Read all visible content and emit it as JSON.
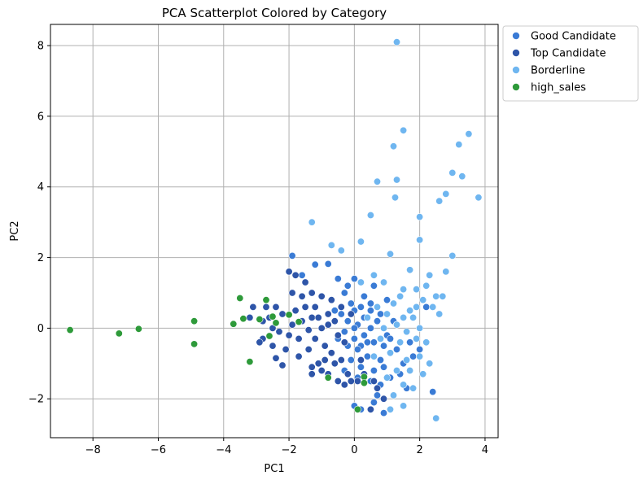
{
  "chart_data": {
    "type": "scatter",
    "title": "PCA Scatterplot Colored by Category",
    "xlabel": "PC1",
    "ylabel": "PC2",
    "xlim": [
      -9.3,
      4.4
    ],
    "ylim": [
      -3.1,
      8.6
    ],
    "xticks": [
      -8,
      -6,
      -4,
      -2,
      0,
      2,
      4
    ],
    "yticks": [
      -2,
      0,
      2,
      4,
      6,
      8
    ],
    "grid": true,
    "legend_position": "outside upper right",
    "series": [
      {
        "name": "Good Candidate",
        "color": "#3a7bd5",
        "points": [
          [
            -1.9,
            2.05
          ],
          [
            -1.6,
            1.5
          ],
          [
            -1.2,
            1.8
          ],
          [
            -0.8,
            1.82
          ],
          [
            -0.5,
            1.4
          ],
          [
            -0.2,
            1.2
          ],
          [
            0.0,
            1.4
          ],
          [
            -0.3,
            1.0
          ],
          [
            -0.1,
            0.7
          ],
          [
            0.0,
            0.5
          ],
          [
            -0.2,
            0.2
          ],
          [
            0.1,
            0.1
          ],
          [
            -0.3,
            -0.1
          ],
          [
            0.0,
            -0.3
          ],
          [
            0.2,
            -0.5
          ],
          [
            0.3,
            -0.2
          ],
          [
            0.5,
            0.0
          ],
          [
            0.6,
            -0.4
          ],
          [
            0.4,
            -0.8
          ],
          [
            0.2,
            -1.1
          ],
          [
            0.6,
            -1.2
          ],
          [
            0.8,
            -0.9
          ],
          [
            0.9,
            -0.5
          ],
          [
            1.0,
            -0.2
          ],
          [
            1.2,
            0.2
          ],
          [
            0.8,
            0.4
          ],
          [
            0.5,
            0.7
          ],
          [
            0.3,
            0.9
          ],
          [
            0.6,
            1.2
          ],
          [
            1.0,
            0.8
          ],
          [
            1.3,
            -0.6
          ],
          [
            1.5,
            -1.0
          ],
          [
            1.1,
            -1.4
          ],
          [
            0.8,
            -1.6
          ],
          [
            0.7,
            -1.9
          ],
          [
            0.6,
            -2.1
          ],
          [
            0.9,
            -2.4
          ],
          [
            0.2,
            -2.3
          ],
          [
            0.0,
            -2.2
          ],
          [
            1.6,
            -1.7
          ],
          [
            1.8,
            -0.8
          ],
          [
            2.0,
            -0.6
          ],
          [
            2.4,
            -1.8
          ],
          [
            2.2,
            0.6
          ],
          [
            0.1,
            -0.6
          ],
          [
            -0.4,
            0.4
          ],
          [
            -0.1,
            -0.9
          ],
          [
            0.3,
            0.3
          ],
          [
            0.7,
            0.2
          ],
          [
            1.1,
            -0.3
          ],
          [
            0.4,
            -0.4
          ],
          [
            -0.2,
            -0.5
          ],
          [
            0.2,
            0.6
          ],
          [
            0.9,
            -1.1
          ],
          [
            1.4,
            -1.3
          ],
          [
            0.5,
            -1.5
          ],
          [
            -0.5,
            -0.3
          ],
          [
            -0.6,
            0.5
          ],
          [
            0.0,
            0.0
          ],
          [
            0.5,
            0.5
          ],
          [
            1.3,
            0.1
          ],
          [
            1.7,
            -0.4
          ],
          [
            0.1,
            -1.4
          ],
          [
            -0.3,
            -1.2
          ]
        ]
      },
      {
        "name": "Top Candidate",
        "color": "#2e55a8",
        "points": [
          [
            -1.8,
            1.5
          ],
          [
            -1.5,
            1.3
          ],
          [
            -2.0,
            1.6
          ],
          [
            -1.9,
            1.0
          ],
          [
            -1.6,
            0.9
          ],
          [
            -1.3,
            1.0
          ],
          [
            -1.0,
            0.9
          ],
          [
            -0.7,
            0.8
          ],
          [
            -2.4,
            0.6
          ],
          [
            -2.7,
            0.6
          ],
          [
            -2.6,
            0.3
          ],
          [
            -3.1,
            0.6
          ],
          [
            -3.2,
            0.3
          ],
          [
            -2.8,
            0.2
          ],
          [
            -2.5,
            0.0
          ],
          [
            -2.3,
            -0.1
          ],
          [
            -2.8,
            -0.3
          ],
          [
            -2.5,
            -0.5
          ],
          [
            -2.1,
            -0.6
          ],
          [
            -2.4,
            -0.85
          ],
          [
            -2.2,
            -1.05
          ],
          [
            -1.7,
            -0.8
          ],
          [
            -1.4,
            -0.6
          ],
          [
            -1.2,
            -0.3
          ],
          [
            -0.9,
            -0.5
          ],
          [
            -1.0,
            0.0
          ],
          [
            -1.3,
            0.3
          ],
          [
            -1.6,
            0.2
          ],
          [
            -1.9,
            0.1
          ],
          [
            -1.8,
            0.5
          ],
          [
            -1.5,
            0.6
          ],
          [
            -1.2,
            0.6
          ],
          [
            -0.8,
            0.4
          ],
          [
            -0.6,
            0.2
          ],
          [
            -0.5,
            -0.2
          ],
          [
            -0.7,
            -0.7
          ],
          [
            -0.9,
            -0.9
          ],
          [
            -1.1,
            -1.0
          ],
          [
            -1.3,
            -1.1
          ],
          [
            -1.3,
            -1.3
          ],
          [
            -1.0,
            -1.2
          ],
          [
            -0.6,
            -1.0
          ],
          [
            -0.4,
            -0.9
          ],
          [
            -0.2,
            -1.3
          ],
          [
            -0.3,
            -1.6
          ],
          [
            0.1,
            -1.5
          ],
          [
            0.3,
            -1.3
          ],
          [
            -0.8,
            -1.3
          ],
          [
            -0.5,
            -1.5
          ],
          [
            -0.1,
            -1.5
          ],
          [
            -0.4,
            0.6
          ],
          [
            -0.1,
            0.4
          ],
          [
            -1.7,
            -0.3
          ],
          [
            -2.0,
            -0.2
          ],
          [
            -1.4,
            -0.05
          ],
          [
            -1.1,
            0.3
          ],
          [
            -0.8,
            0.1
          ],
          [
            -0.3,
            -0.4
          ],
          [
            0.2,
            -0.9
          ],
          [
            0.6,
            -1.5
          ],
          [
            0.9,
            -2.0
          ],
          [
            0.5,
            -2.3
          ],
          [
            0.7,
            -1.7
          ],
          [
            -2.9,
            -0.4
          ],
          [
            -2.2,
            0.4
          ]
        ]
      },
      {
        "name": "Borderline",
        "color": "#6fb6f0",
        "points": [
          [
            1.3,
            8.1
          ],
          [
            1.5,
            5.6
          ],
          [
            1.2,
            5.15
          ],
          [
            3.5,
            5.5
          ],
          [
            3.2,
            5.2
          ],
          [
            3.0,
            4.4
          ],
          [
            3.3,
            4.3
          ],
          [
            1.3,
            4.2
          ],
          [
            0.7,
            4.15
          ],
          [
            2.8,
            3.8
          ],
          [
            3.8,
            3.7
          ],
          [
            2.6,
            3.6
          ],
          [
            1.25,
            3.7
          ],
          [
            2.0,
            3.15
          ],
          [
            0.5,
            3.2
          ],
          [
            -1.3,
            3.0
          ],
          [
            2.0,
            2.5
          ],
          [
            0.2,
            2.45
          ],
          [
            -0.7,
            2.35
          ],
          [
            -0.4,
            2.2
          ],
          [
            3.0,
            2.05
          ],
          [
            1.1,
            2.1
          ],
          [
            1.7,
            1.65
          ],
          [
            2.3,
            1.5
          ],
          [
            2.8,
            1.6
          ],
          [
            0.6,
            1.5
          ],
          [
            0.2,
            1.3
          ],
          [
            0.9,
            1.3
          ],
          [
            1.5,
            1.1
          ],
          [
            2.2,
            1.2
          ],
          [
            2.5,
            0.9
          ],
          [
            1.9,
            1.1
          ],
          [
            2.1,
            0.8
          ],
          [
            2.4,
            0.6
          ],
          [
            2.6,
            0.4
          ],
          [
            1.8,
            0.3
          ],
          [
            2.0,
            0.0
          ],
          [
            2.2,
            -0.4
          ],
          [
            1.7,
            0.5
          ],
          [
            1.2,
            0.7
          ],
          [
            1.5,
            0.3
          ],
          [
            1.0,
            0.4
          ],
          [
            1.3,
            0.1
          ],
          [
            1.6,
            -0.1
          ],
          [
            1.9,
            -0.3
          ],
          [
            1.4,
            -0.4
          ],
          [
            1.1,
            -0.7
          ],
          [
            1.6,
            -0.9
          ],
          [
            2.0,
            -0.8
          ],
          [
            1.3,
            -1.2
          ],
          [
            1.0,
            -1.4
          ],
          [
            1.5,
            -1.6
          ],
          [
            1.8,
            -1.7
          ],
          [
            1.2,
            -1.9
          ],
          [
            1.5,
            -2.2
          ],
          [
            1.1,
            -2.3
          ],
          [
            2.5,
            -2.55
          ],
          [
            0.7,
            0.6
          ],
          [
            0.9,
            0.0
          ],
          [
            0.4,
            0.3
          ],
          [
            0.8,
            -0.3
          ],
          [
            1.7,
            -1.2
          ],
          [
            2.1,
            -1.3
          ],
          [
            2.3,
            -1.0
          ],
          [
            1.4,
            0.9
          ],
          [
            0.6,
            -0.8
          ],
          [
            1.9,
            0.6
          ],
          [
            2.7,
            0.9
          ]
        ]
      },
      {
        "name": "high_sales",
        "color": "#2e9a3a",
        "points": [
          [
            -8.7,
            -0.05
          ],
          [
            -7.2,
            -0.15
          ],
          [
            -6.6,
            -0.02
          ],
          [
            -4.9,
            0.2
          ],
          [
            -4.9,
            -0.45
          ],
          [
            -3.7,
            0.12
          ],
          [
            -3.4,
            0.27
          ],
          [
            -3.5,
            0.85
          ],
          [
            -3.2,
            -0.95
          ],
          [
            -2.9,
            0.25
          ],
          [
            -2.7,
            0.8
          ],
          [
            -2.6,
            -0.22
          ],
          [
            -2.4,
            0.15
          ],
          [
            -2.0,
            0.38
          ],
          [
            -1.7,
            0.18
          ],
          [
            -0.8,
            -1.4
          ],
          [
            0.1,
            -2.3
          ],
          [
            0.3,
            -1.38
          ],
          [
            0.3,
            -1.55
          ],
          [
            -2.5,
            0.33
          ]
        ]
      }
    ]
  }
}
